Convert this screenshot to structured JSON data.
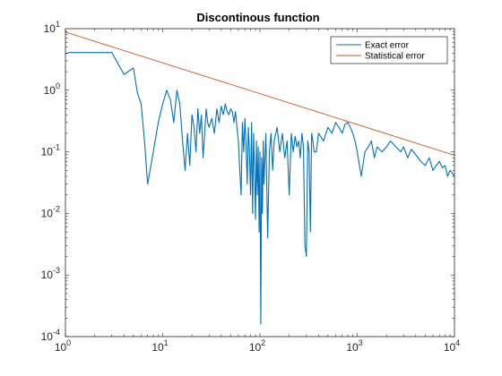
{
  "chart_data": {
    "type": "line",
    "title": "Discontinous function",
    "xlabel": "",
    "ylabel": "",
    "xscale": "log",
    "yscale": "log",
    "xlim": [
      1,
      10000
    ],
    "ylim": [
      0.0001,
      10
    ],
    "x_ticks": [
      {
        "base": "10",
        "exp": "0"
      },
      {
        "base": "10",
        "exp": "1"
      },
      {
        "base": "10",
        "exp": "2"
      },
      {
        "base": "10",
        "exp": "3"
      },
      {
        "base": "10",
        "exp": "4"
      }
    ],
    "y_ticks": [
      {
        "base": "10",
        "exp": "-4"
      },
      {
        "base": "10",
        "exp": "-3"
      },
      {
        "base": "10",
        "exp": "-2"
      },
      {
        "base": "10",
        "exp": "-1"
      },
      {
        "base": "10",
        "exp": "0"
      },
      {
        "base": "10",
        "exp": "1"
      }
    ],
    "grid": false,
    "legend_position": "top-right",
    "series": [
      {
        "name": "Exact error",
        "color": "#0072BD",
        "x": [
          1,
          1.1,
          3,
          4,
          5,
          5.5,
          6,
          6.5,
          7,
          8,
          9,
          10,
          11,
          12,
          13,
          14,
          15,
          16,
          17,
          18,
          19,
          20,
          21,
          22,
          23,
          24,
          25,
          26,
          27,
          28,
          29,
          30,
          32,
          34,
          36,
          38,
          40,
          42,
          44,
          46,
          48,
          50,
          52,
          54,
          56,
          58,
          60,
          62,
          64,
          66,
          68,
          70,
          72,
          74,
          76,
          78,
          80,
          82,
          84,
          86,
          88,
          90,
          92,
          94,
          96,
          98,
          100,
          102,
          104,
          106,
          108,
          110,
          115,
          120,
          125,
          130,
          135,
          140,
          150,
          160,
          170,
          180,
          190,
          200,
          210,
          220,
          230,
          240,
          250,
          260,
          270,
          280,
          290,
          300,
          310,
          320,
          330,
          340,
          350,
          360,
          380,
          400,
          450,
          500,
          550,
          600,
          650,
          700,
          750,
          800,
          850,
          900,
          950,
          1000,
          1100,
          1200,
          1300,
          1400,
          1500,
          1600,
          1800,
          2000,
          2200,
          2500,
          2800,
          3000,
          3300,
          3600,
          4000,
          4500,
          5000,
          5500,
          6000,
          6500,
          7000,
          7500,
          8000,
          8500,
          9000,
          9500,
          10000
        ],
        "y": [
          3.9,
          4.1,
          4.1,
          1.8,
          2.3,
          0.9,
          0.6,
          0.15,
          0.03,
          0.1,
          0.3,
          0.6,
          1.0,
          0.7,
          0.3,
          1.0,
          0.6,
          0.15,
          0.05,
          0.2,
          0.06,
          0.4,
          0.25,
          0.1,
          0.5,
          0.2,
          0.4,
          0.08,
          0.2,
          0.5,
          0.3,
          0.25,
          0.35,
          0.2,
          0.5,
          0.3,
          0.55,
          0.4,
          0.6,
          0.45,
          0.4,
          0.5,
          0.45,
          0.3,
          0.45,
          0.25,
          0.15,
          0.05,
          0.02,
          0.3,
          0.1,
          0.35,
          0.12,
          0.03,
          0.25,
          0.1,
          0.02,
          0.3,
          0.01,
          0.2,
          0.05,
          0.008,
          0.15,
          0.02,
          0.12,
          0.005,
          0.1,
          0.00016,
          0.08,
          0.01,
          0.15,
          0.03,
          0.2,
          0.004,
          0.1,
          0.2,
          0.05,
          0.15,
          0.25,
          0.1,
          0.2,
          0.08,
          0.15,
          0.02,
          0.2,
          0.1,
          0.18,
          0.12,
          0.15,
          0.08,
          0.2,
          0.12,
          0.003,
          0.002,
          0.15,
          0.1,
          0.005,
          0.2,
          0.15,
          0.1,
          0.1,
          0.2,
          0.15,
          0.25,
          0.2,
          0.3,
          0.25,
          0.2,
          0.28,
          0.3,
          0.25,
          0.2,
          0.15,
          0.1,
          0.04,
          0.1,
          0.12,
          0.15,
          0.08,
          0.12,
          0.1,
          0.12,
          0.15,
          0.12,
          0.1,
          0.12,
          0.08,
          0.11,
          0.09,
          0.07,
          0.06,
          0.08,
          0.05,
          0.06,
          0.07,
          0.055,
          0.06,
          0.04,
          0.05,
          0.045,
          0.04
        ]
      },
      {
        "name": "Statistical error",
        "color": "#D95319",
        "x": [
          1,
          10000
        ],
        "y": [
          8.8,
          0.088
        ]
      }
    ]
  }
}
